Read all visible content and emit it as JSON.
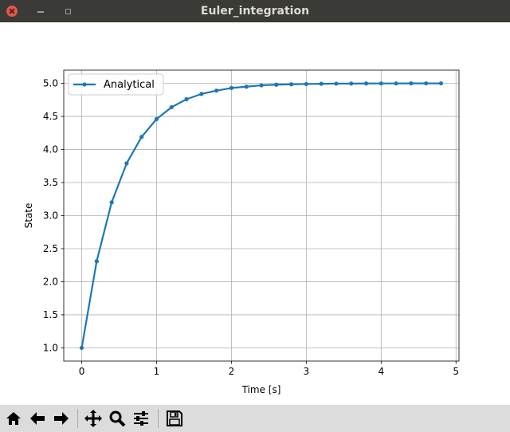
{
  "window": {
    "title": "Euler_integration"
  },
  "toolbar": {
    "buttons": [
      {
        "name": "home-icon"
      },
      {
        "name": "back-arrow-icon"
      },
      {
        "name": "forward-arrow-icon"
      },
      {
        "name": "pan-icon"
      },
      {
        "name": "zoom-icon"
      },
      {
        "name": "configure-subplots-icon"
      },
      {
        "name": "save-icon"
      }
    ]
  },
  "chart_data": {
    "type": "line",
    "title": "",
    "xlabel": "Time [s]",
    "ylabel": "State",
    "xlim": [
      -0.24,
      5.04
    ],
    "ylim": [
      0.8,
      5.2
    ],
    "xticks": [
      0,
      1,
      2,
      3,
      4,
      5
    ],
    "xtick_labels": [
      "0",
      "1",
      "2",
      "3",
      "4",
      "5"
    ],
    "yticks": [
      1.0,
      1.5,
      2.0,
      2.5,
      3.0,
      3.5,
      4.0,
      4.5,
      5.0
    ],
    "ytick_labels": [
      "1.0",
      "1.5",
      "2.0",
      "2.5",
      "3.0",
      "3.5",
      "4.0",
      "4.5",
      "5.0"
    ],
    "grid": true,
    "legend_position": "top-left",
    "series": [
      {
        "name": "Analytical",
        "color": "#1f77b4",
        "marker": "dot",
        "x": [
          0,
          0.2,
          0.4,
          0.6,
          0.8,
          1.0,
          1.2,
          1.4,
          1.6,
          1.8,
          2.0,
          2.2,
          2.4,
          2.6,
          2.8,
          3.0,
          3.2,
          3.4,
          3.6,
          3.8,
          4.0,
          4.2,
          4.4,
          4.6,
          4.8
        ],
        "y": [
          1.0,
          2.31,
          3.2,
          3.79,
          4.19,
          4.46,
          4.64,
          4.76,
          4.84,
          4.89,
          4.93,
          4.95,
          4.97,
          4.98,
          4.986,
          4.99,
          4.994,
          4.996,
          4.997,
          4.998,
          4.999,
          4.999,
          5.0,
          5.0,
          5.0
        ]
      }
    ]
  }
}
